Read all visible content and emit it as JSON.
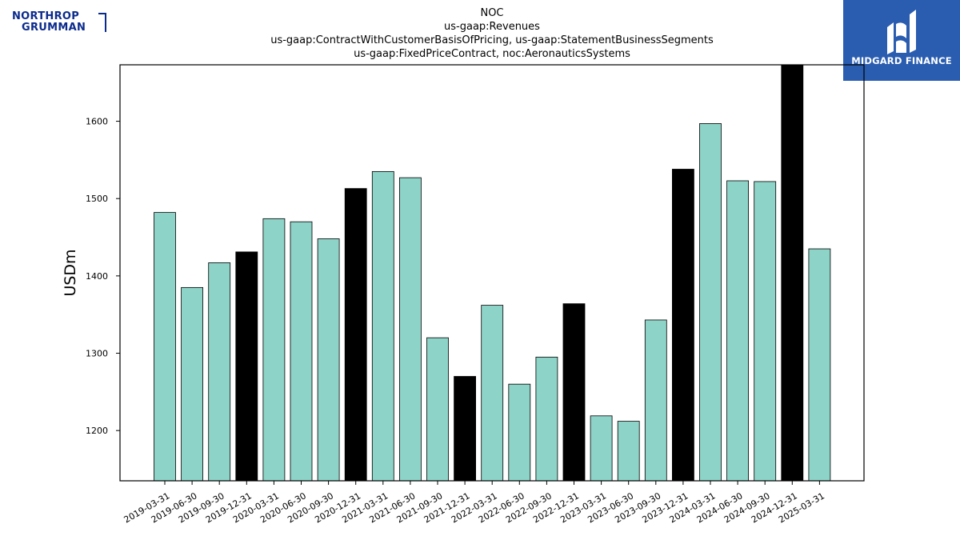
{
  "logos": {
    "left_line1": "NORTHROP",
    "left_line2": "GRUMMAN",
    "right_name": "MIDGARD FINANCE"
  },
  "colors": {
    "bar_default": "#8dd3c7",
    "bar_highlight": "#000000",
    "left_brand": "#0b2b8c",
    "right_brand_bg": "#2a5db0"
  },
  "chart_data": {
    "type": "bar",
    "title_lines": [
      "NOC",
      "us-gaap:Revenues",
      "us-gaap:ContractWithCustomerBasisOfPricing, us-gaap:StatementBusinessSegments",
      "us-gaap:FixedPriceContract, noc:AeronauticsSystems"
    ],
    "xlabel": "",
    "ylabel": "USDm",
    "ylim": [
      1135,
      1673
    ],
    "yticks": [
      1200,
      1300,
      1400,
      1500,
      1600
    ],
    "grid": false,
    "categories": [
      "2019-03-31",
      "2019-06-30",
      "2019-09-30",
      "2019-12-31",
      "2020-03-31",
      "2020-06-30",
      "2020-09-30",
      "2020-12-31",
      "2021-03-31",
      "2021-06-30",
      "2021-09-30",
      "2021-12-31",
      "2022-03-31",
      "2022-06-30",
      "2022-09-30",
      "2022-12-31",
      "2023-03-31",
      "2023-06-30",
      "2023-09-30",
      "2023-12-31",
      "2024-03-31",
      "2024-06-30",
      "2024-09-30",
      "2024-12-31",
      "2025-03-31"
    ],
    "values": [
      1482,
      1385,
      1417,
      1431,
      1474,
      1470,
      1448,
      1513,
      1535,
      1527,
      1320,
      1270,
      1362,
      1260,
      1295,
      1364,
      1219,
      1212,
      1343,
      1538,
      1597,
      1523,
      1522,
      1673,
      1435
    ],
    "highlight_categories": [
      "2019-12-31",
      "2020-12-31",
      "2021-12-31",
      "2022-12-31",
      "2023-12-31",
      "2024-12-31"
    ]
  }
}
